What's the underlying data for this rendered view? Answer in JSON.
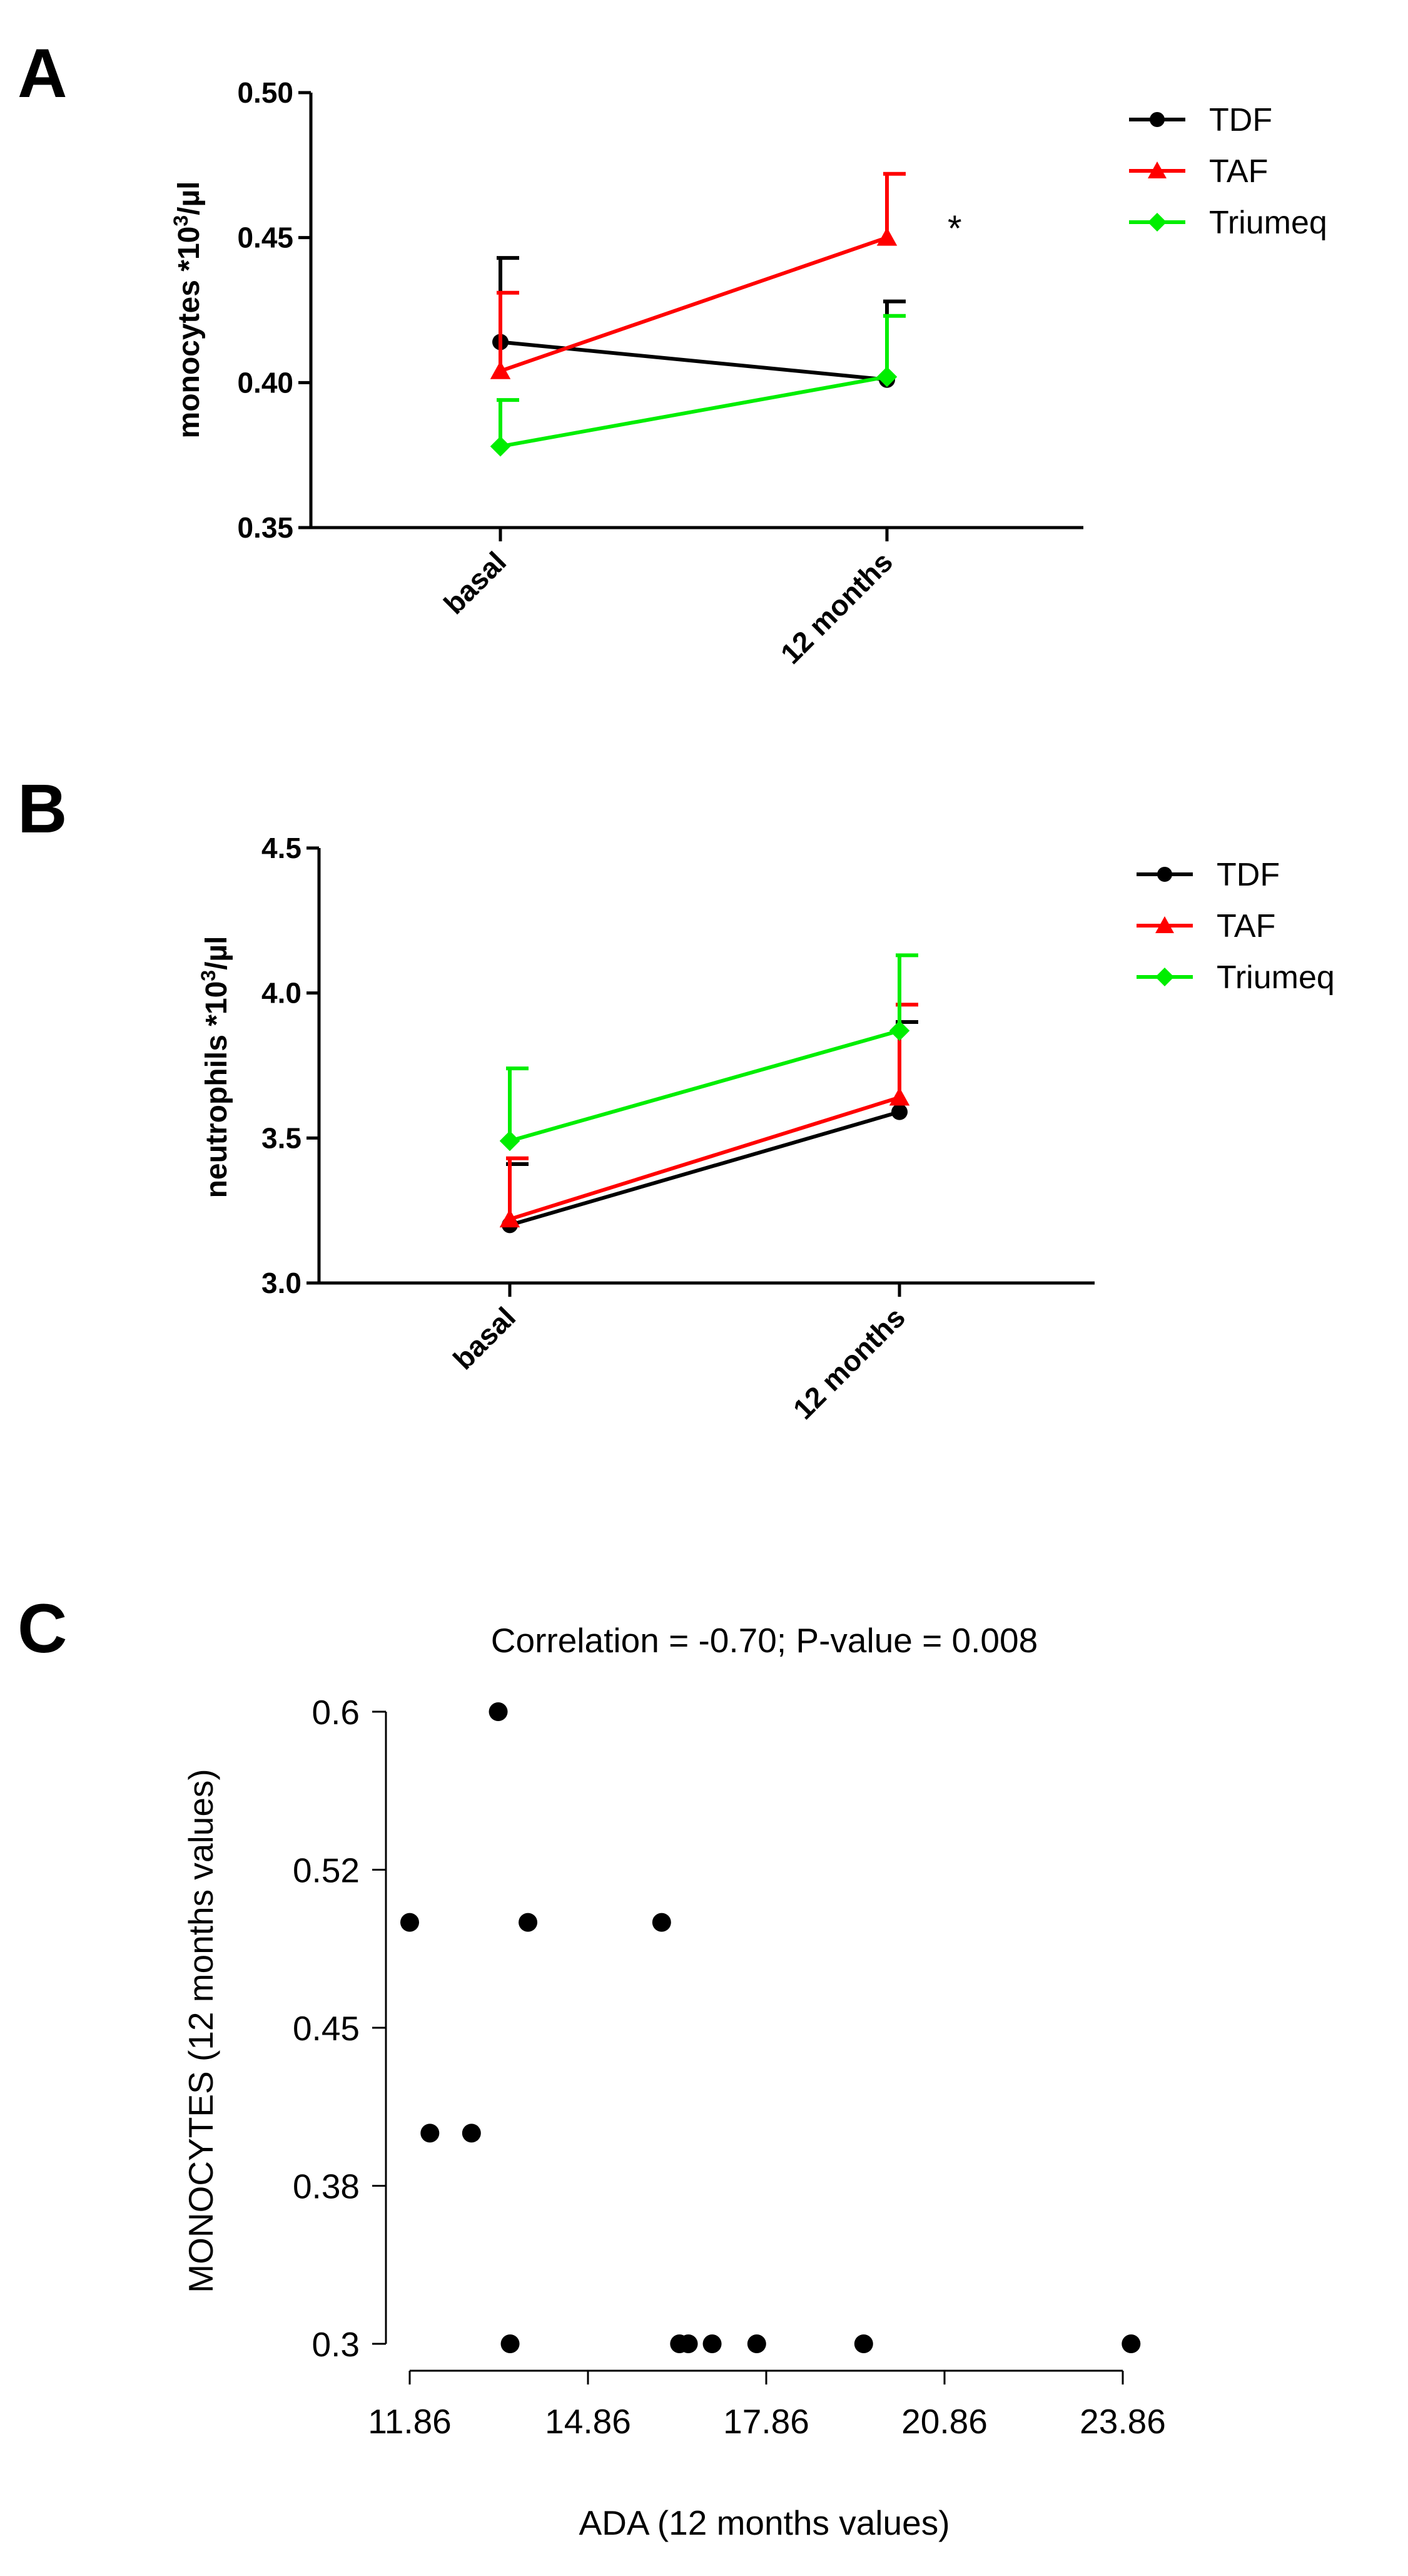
{
  "chart_data": [
    {
      "panel": "A",
      "type": "line",
      "categories": [
        "basal",
        "12 months"
      ],
      "ylabel": "monocytes *10",
      "ylabel_sup": "3",
      "ylabel_tail": "/µl",
      "ylim": [
        0.35,
        0.5
      ],
      "yticks": [
        "0.35",
        "0.40",
        "0.45",
        "0.50"
      ],
      "ytick_values": [
        0.35,
        0.4,
        0.45,
        0.5
      ],
      "legend": "top-right",
      "annotation": "*",
      "series": [
        {
          "name": "TDF",
          "color": "#000000",
          "marker": "circle",
          "values": [
            0.414,
            0.401
          ],
          "errors": [
            0.029,
            0.027
          ]
        },
        {
          "name": "TAF",
          "color": "#ff0000",
          "marker": "triangle",
          "values": [
            0.404,
            0.45
          ],
          "errors": [
            0.027,
            0.022
          ]
        },
        {
          "name": "Triumeq",
          "color": "#00ee00",
          "marker": "diamond",
          "values": [
            0.378,
            0.402
          ],
          "errors": [
            0.016,
            0.021
          ]
        }
      ]
    },
    {
      "panel": "B",
      "type": "line",
      "categories": [
        "basal",
        "12 months"
      ],
      "ylabel": "neutrophils *10",
      "ylabel_sup": "3",
      "ylabel_tail": "/µl",
      "ylim": [
        3.0,
        4.5
      ],
      "yticks": [
        "3.0",
        "3.5",
        "4.0",
        "4.5"
      ],
      "ytick_values": [
        3.0,
        3.5,
        4.0,
        4.5
      ],
      "legend": "top-right",
      "series": [
        {
          "name": "TDF",
          "color": "#000000",
          "marker": "circle",
          "values": [
            3.2,
            3.59
          ],
          "errors": [
            0.21,
            0.31
          ]
        },
        {
          "name": "TAF",
          "color": "#ff0000",
          "marker": "triangle",
          "values": [
            3.22,
            3.64
          ],
          "errors": [
            0.21,
            0.32
          ]
        },
        {
          "name": "Triumeq",
          "color": "#00ee00",
          "marker": "diamond",
          "values": [
            3.49,
            3.87
          ],
          "errors": [
            0.25,
            0.26
          ]
        }
      ]
    },
    {
      "panel": "C",
      "type": "scatter",
      "title": "Correlation = -0.70; P-value = 0.008",
      "xlabel": "ADA (12 months values)",
      "ylabel": "MONOCYTES (12 months values)",
      "xticks": [
        "11.86",
        "14.86",
        "17.86",
        "20.86",
        "23.86"
      ],
      "xtick_values": [
        11.86,
        14.86,
        17.86,
        20.86,
        23.86
      ],
      "yticks": [
        "0.3",
        "0.38",
        "0.45",
        "0.52",
        "0.6"
      ],
      "ytick_values": [
        0.3,
        0.375,
        0.45,
        0.525,
        0.6
      ],
      "xlim": [
        11.86,
        23.86
      ],
      "ylim": [
        0.3,
        0.6
      ],
      "points": [
        {
          "x": 13.35,
          "y": 0.6
        },
        {
          "x": 11.86,
          "y": 0.5
        },
        {
          "x": 13.85,
          "y": 0.5
        },
        {
          "x": 16.1,
          "y": 0.5
        },
        {
          "x": 12.2,
          "y": 0.4
        },
        {
          "x": 12.9,
          "y": 0.4
        },
        {
          "x": 13.55,
          "y": 0.3
        },
        {
          "x": 16.4,
          "y": 0.3
        },
        {
          "x": 16.55,
          "y": 0.3
        },
        {
          "x": 16.95,
          "y": 0.3
        },
        {
          "x": 17.7,
          "y": 0.3
        },
        {
          "x": 19.5,
          "y": 0.3
        },
        {
          "x": 24.0,
          "y": 0.3
        }
      ]
    }
  ]
}
